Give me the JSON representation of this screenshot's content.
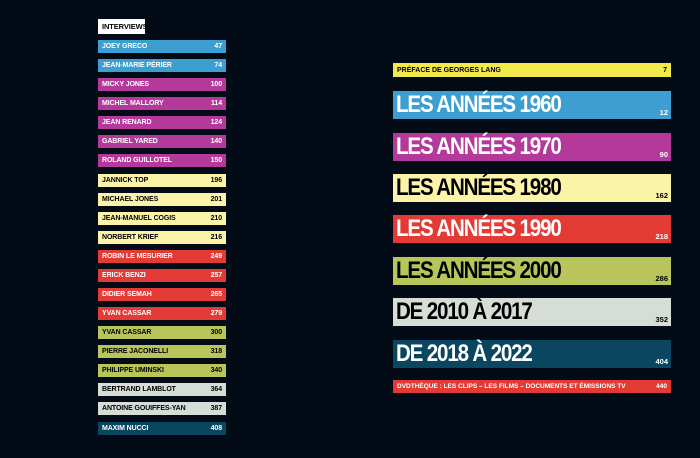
{
  "interviews": {
    "heading": "INTERVIEWS",
    "items": [
      {
        "name": "JOEY GRECO",
        "page": "47",
        "color": "#3d9ed1",
        "text": "#ffffff"
      },
      {
        "name": "JEAN-MARIE PÉRIER",
        "page": "74",
        "color": "#3d9ed1",
        "text": "#ffffff"
      },
      {
        "name": "MICKY JONES",
        "page": "100",
        "color": "#b5389b",
        "text": "#ffffff"
      },
      {
        "name": "MICHEL MALLORY",
        "page": "114",
        "color": "#b5389b",
        "text": "#ffffff"
      },
      {
        "name": "JEAN RENARD",
        "page": "124",
        "color": "#b5389b",
        "text": "#ffffff"
      },
      {
        "name": "GABRIEL YARED",
        "page": "140",
        "color": "#b5389b",
        "text": "#ffffff"
      },
      {
        "name": "ROLAND GUILLOTEL",
        "page": "150",
        "color": "#b5389b",
        "text": "#ffffff"
      },
      {
        "name": "JANNICK TOP",
        "page": "196",
        "color": "#fbf4a8",
        "text": "#000000"
      },
      {
        "name": "MICHAEL JONES",
        "page": "201",
        "color": "#fbf4a8",
        "text": "#000000"
      },
      {
        "name": "JEAN-MANUEL COGIS",
        "page": "210",
        "color": "#fbf4a8",
        "text": "#000000"
      },
      {
        "name": "NORBERT KRIEF",
        "page": "216",
        "color": "#fbf4a8",
        "text": "#000000"
      },
      {
        "name": "ROBIN LE MESURIER",
        "page": "249",
        "color": "#e33a36",
        "text": "#ffffff"
      },
      {
        "name": "ERICK BENZI",
        "page": "257",
        "color": "#e33a36",
        "text": "#ffffff"
      },
      {
        "name": "DIDIER SEMAH",
        "page": "265",
        "color": "#e33a36",
        "text": "#ffffff"
      },
      {
        "name": "YVAN CASSAR",
        "page": "279",
        "color": "#e33a36",
        "text": "#ffffff"
      },
      {
        "name": "YVAN CASSAR",
        "page": "300",
        "color": "#b7c55a",
        "text": "#000000"
      },
      {
        "name": "PIERRE JACONELLI",
        "page": "318",
        "color": "#b7c55a",
        "text": "#000000"
      },
      {
        "name": "PHILIPPE UMINSKI",
        "page": "340",
        "color": "#b7c55a",
        "text": "#000000"
      },
      {
        "name": "BERTRAND LAMBLOT",
        "page": "364",
        "color": "#d6dcd6",
        "text": "#000000"
      },
      {
        "name": "ANTOINE GOUIFFES-YAN",
        "page": "387",
        "color": "#d6dcd6",
        "text": "#000000"
      },
      {
        "name": "MAXIM NUCCI",
        "page": "408",
        "color": "#0b4660",
        "text": "#ffffff"
      }
    ]
  },
  "preface": {
    "label": "PRÉFACE DE GEORGES LANG",
    "page": "7",
    "color": "#f2e94a"
  },
  "decades": [
    {
      "title": "LES ANNÉES 1960",
      "page": "12",
      "color": "#3d9ed1",
      "text": "#ffffff"
    },
    {
      "title": "LES ANNÉES 1970",
      "page": "90",
      "color": "#b5389b",
      "text": "#ffffff"
    },
    {
      "title": "LES ANNÉES 1980",
      "page": "162",
      "color": "#fbf4a8",
      "text": "#000000"
    },
    {
      "title": "LES ANNÉES 1990",
      "page": "218",
      "color": "#e33a36",
      "text": "#ffffff"
    },
    {
      "title": "LES ANNÉES 2000",
      "page": "286",
      "color": "#b7c55a",
      "text": "#000000"
    },
    {
      "title": "DE 2010 À 2017",
      "page": "352",
      "color": "#d6dcd6",
      "text": "#000000"
    },
    {
      "title": "DE 2018 À 2022",
      "page": "404",
      "color": "#0b4660",
      "text": "#ffffff"
    }
  ],
  "dvdtheque": {
    "label": "DVDTHÈQUE : LES CLIPS – LES FILMS – DOCUMENTS ET ÉMISSIONS TV",
    "page": "440",
    "color": "#e33a36"
  }
}
